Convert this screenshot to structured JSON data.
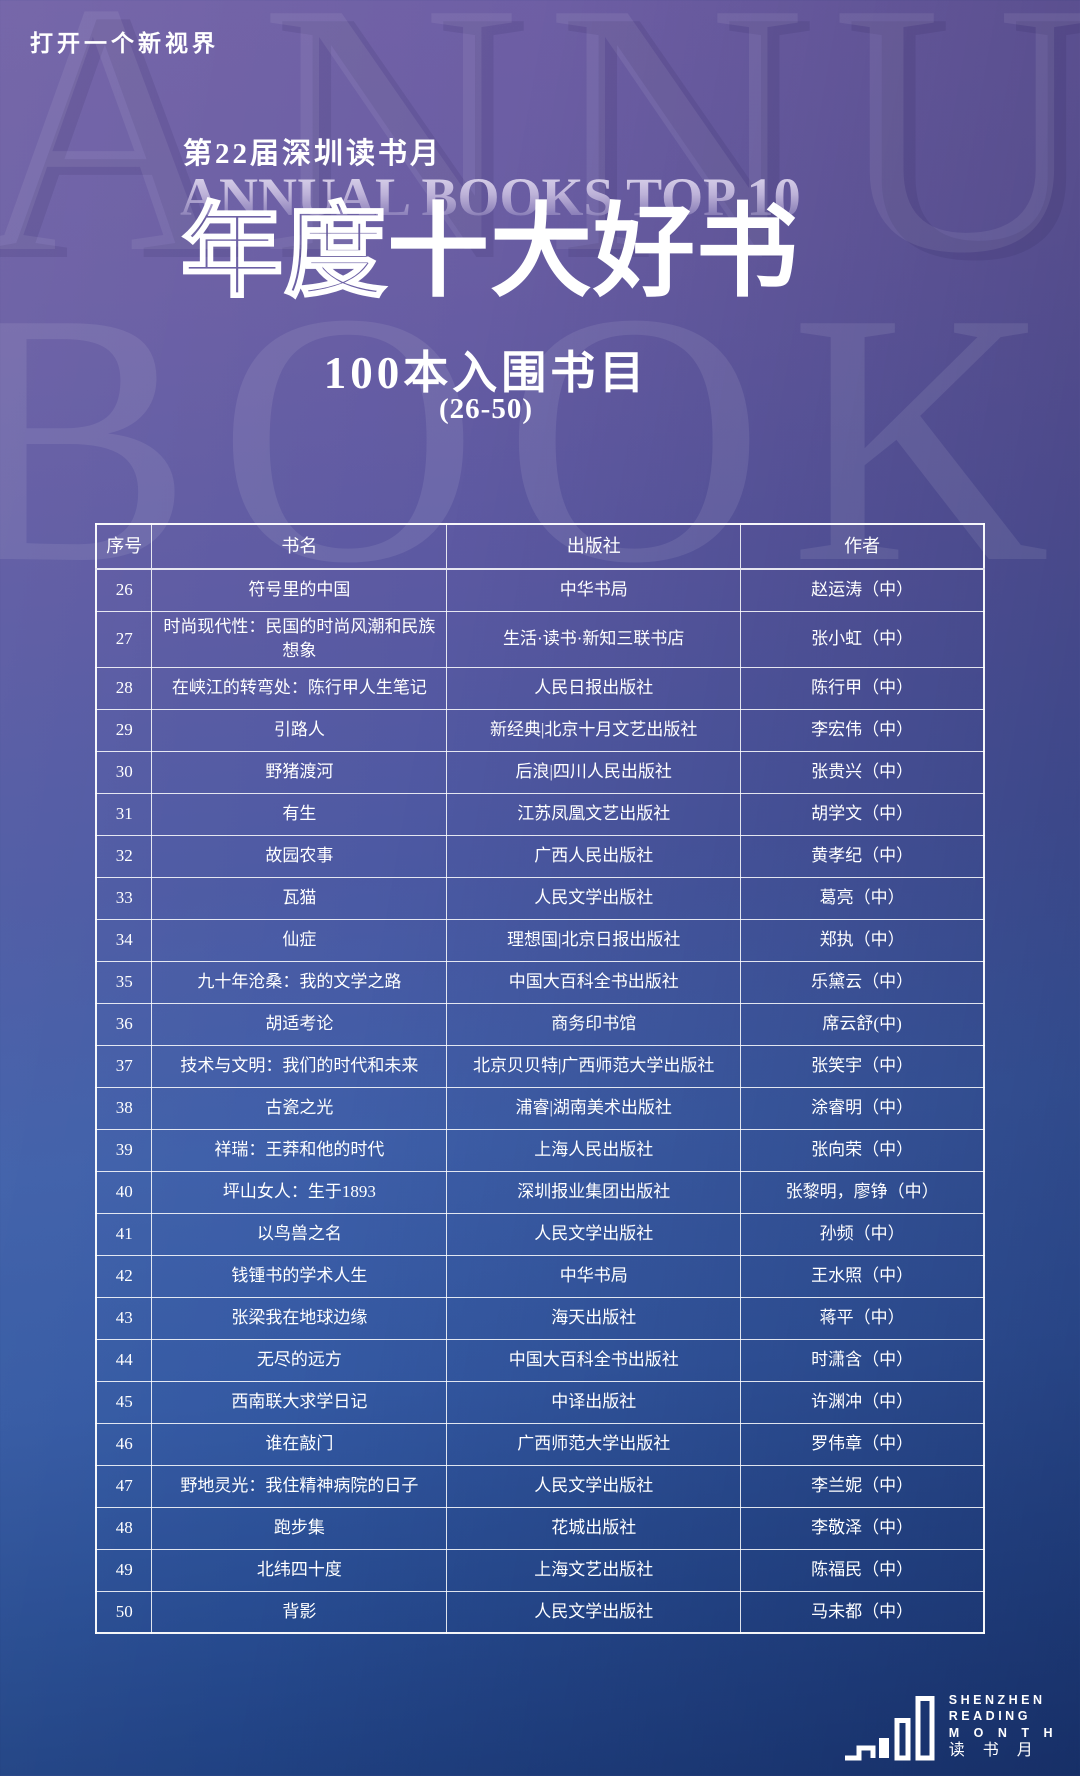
{
  "page": {
    "tagline": "打开一个新视界",
    "event": "第22届深圳读书月",
    "title_en": "ANNUAL BOOKS TOP 10",
    "title_cn_outline": "年度",
    "title_cn_solid": "十大好书",
    "subtitle": "100本入围书目",
    "range": "(26-50)",
    "watermark_top": "ANNUA",
    "watermark_bottom": "BOOKS"
  },
  "table": {
    "headers": [
      "序号",
      "书名",
      "出版社",
      "作者"
    ],
    "rows": [
      [
        "26",
        "符号里的中国",
        "中华书局",
        "赵运涛（中）"
      ],
      [
        "27",
        "时尚现代性：民国的时尚风潮和民族想象",
        "生活·读书·新知三联书店",
        "张小虹（中）"
      ],
      [
        "28",
        "在峡江的转弯处：陈行甲人生笔记",
        "人民日报出版社",
        "陈行甲（中）"
      ],
      [
        "29",
        "引路人",
        "新经典|北京十月文艺出版社",
        "李宏伟（中）"
      ],
      [
        "30",
        "野猪渡河",
        "后浪|四川人民出版社",
        "张贵兴（中）"
      ],
      [
        "31",
        "有生",
        "江苏凤凰文艺出版社",
        "胡学文（中）"
      ],
      [
        "32",
        "故园农事",
        "广西人民出版社",
        "黄孝纪（中）"
      ],
      [
        "33",
        "瓦猫",
        "人民文学出版社",
        "葛亮（中）"
      ],
      [
        "34",
        "仙症",
        "理想国|北京日报出版社",
        "郑执（中）"
      ],
      [
        "35",
        "九十年沧桑：我的文学之路",
        "中国大百科全书出版社",
        "乐黛云（中）"
      ],
      [
        "36",
        "胡适考论",
        "商务印书馆",
        "席云舒(中)"
      ],
      [
        "37",
        "技术与文明：我们的时代和未来",
        "北京贝贝特|广西师范大学出版社",
        "张笑宇（中）"
      ],
      [
        "38",
        "古瓷之光",
        "浦睿|湖南美术出版社",
        "涂睿明（中）"
      ],
      [
        "39",
        "祥瑞：王莽和他的时代",
        "上海人民出版社",
        "张向荣（中）"
      ],
      [
        "40",
        "坪山女人：生于1893",
        "深圳报业集团出版社",
        "张黎明，廖铮（中）"
      ],
      [
        "41",
        "以鸟兽之名",
        "人民文学出版社",
        "孙频（中）"
      ],
      [
        "42",
        "钱锺书的学术人生",
        "中华书局",
        "王水照（中）"
      ],
      [
        "43",
        "张梁我在地球边缘",
        "海天出版社",
        "蒋平（中）"
      ],
      [
        "44",
        "无尽的远方",
        "中国大百科全书出版社",
        "时潇含（中）"
      ],
      [
        "45",
        "西南联大求学日记",
        "中译出版社",
        "许渊冲（中）"
      ],
      [
        "46",
        "谁在敲门",
        "广西师范大学出版社",
        "罗伟章（中）"
      ],
      [
        "47",
        "野地灵光：我住精神病院的日子",
        "人民文学出版社",
        "李兰妮（中）"
      ],
      [
        "48",
        "跑步集",
        "花城出版社",
        "李敬泽（中）"
      ],
      [
        "49",
        "北纬四十度",
        "上海文艺出版社",
        "陈福民（中）"
      ],
      [
        "50",
        "背影",
        "人民文学出版社",
        "马未都（中）"
      ]
    ]
  },
  "footer": {
    "logo_line1": "SHENZHEN",
    "logo_line2": "READING",
    "logo_line3": "M O N T H",
    "logo_line4": "读 书 月"
  },
  "colors": {
    "background_top": "#6f5fa5",
    "background_bottom": "#1d3d7c",
    "text": "#ffffff",
    "table_border": "rgba(255,255,255,0.9)"
  }
}
